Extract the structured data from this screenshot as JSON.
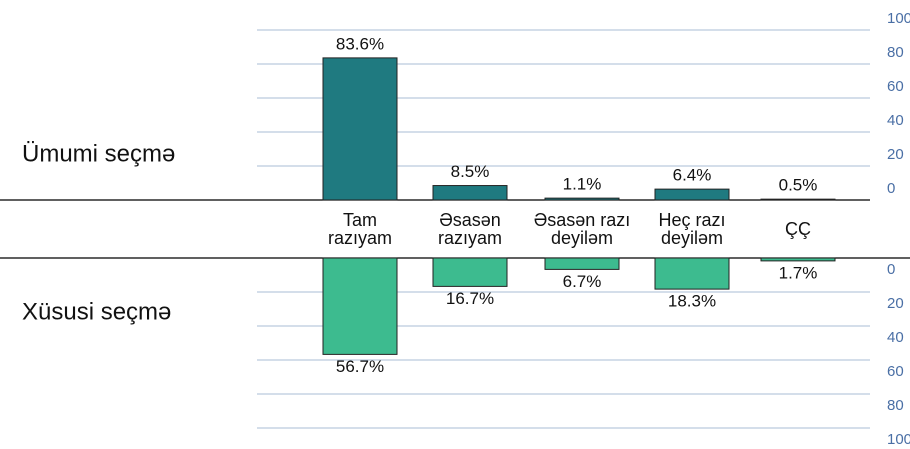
{
  "chart_data": [
    {
      "type": "bar",
      "title": "Ümumi seçmə",
      "categories": [
        "Tam\nrazıyam",
        "Əsasən\nrazıyam",
        "Əsasən razı\ndeyiləm",
        "Heç razı\ndeyiləm",
        "ÇÇ"
      ],
      "values": [
        83.6,
        8.5,
        1.1,
        6.4,
        0.5
      ],
      "value_labels": [
        "83.6%",
        "8.5%",
        "1.1%",
        "6.4%",
        "0.5%"
      ],
      "color": "#1f7a80",
      "ylim": [
        0,
        100
      ],
      "yticks": [
        0,
        20,
        40,
        60,
        80,
        100
      ],
      "grid": true
    },
    {
      "type": "bar",
      "title": "Xüsusi seçmə",
      "values": [
        56.7,
        16.7,
        6.7,
        18.3,
        1.7
      ],
      "value_labels": [
        "56.7%",
        "16.7%",
        "6.7%",
        "18.3%",
        "1.7%"
      ],
      "color": "#3dbb8f",
      "ylim": [
        0,
        100
      ],
      "yticks": [
        0,
        20,
        40,
        60,
        80,
        100
      ],
      "grid": true
    }
  ]
}
